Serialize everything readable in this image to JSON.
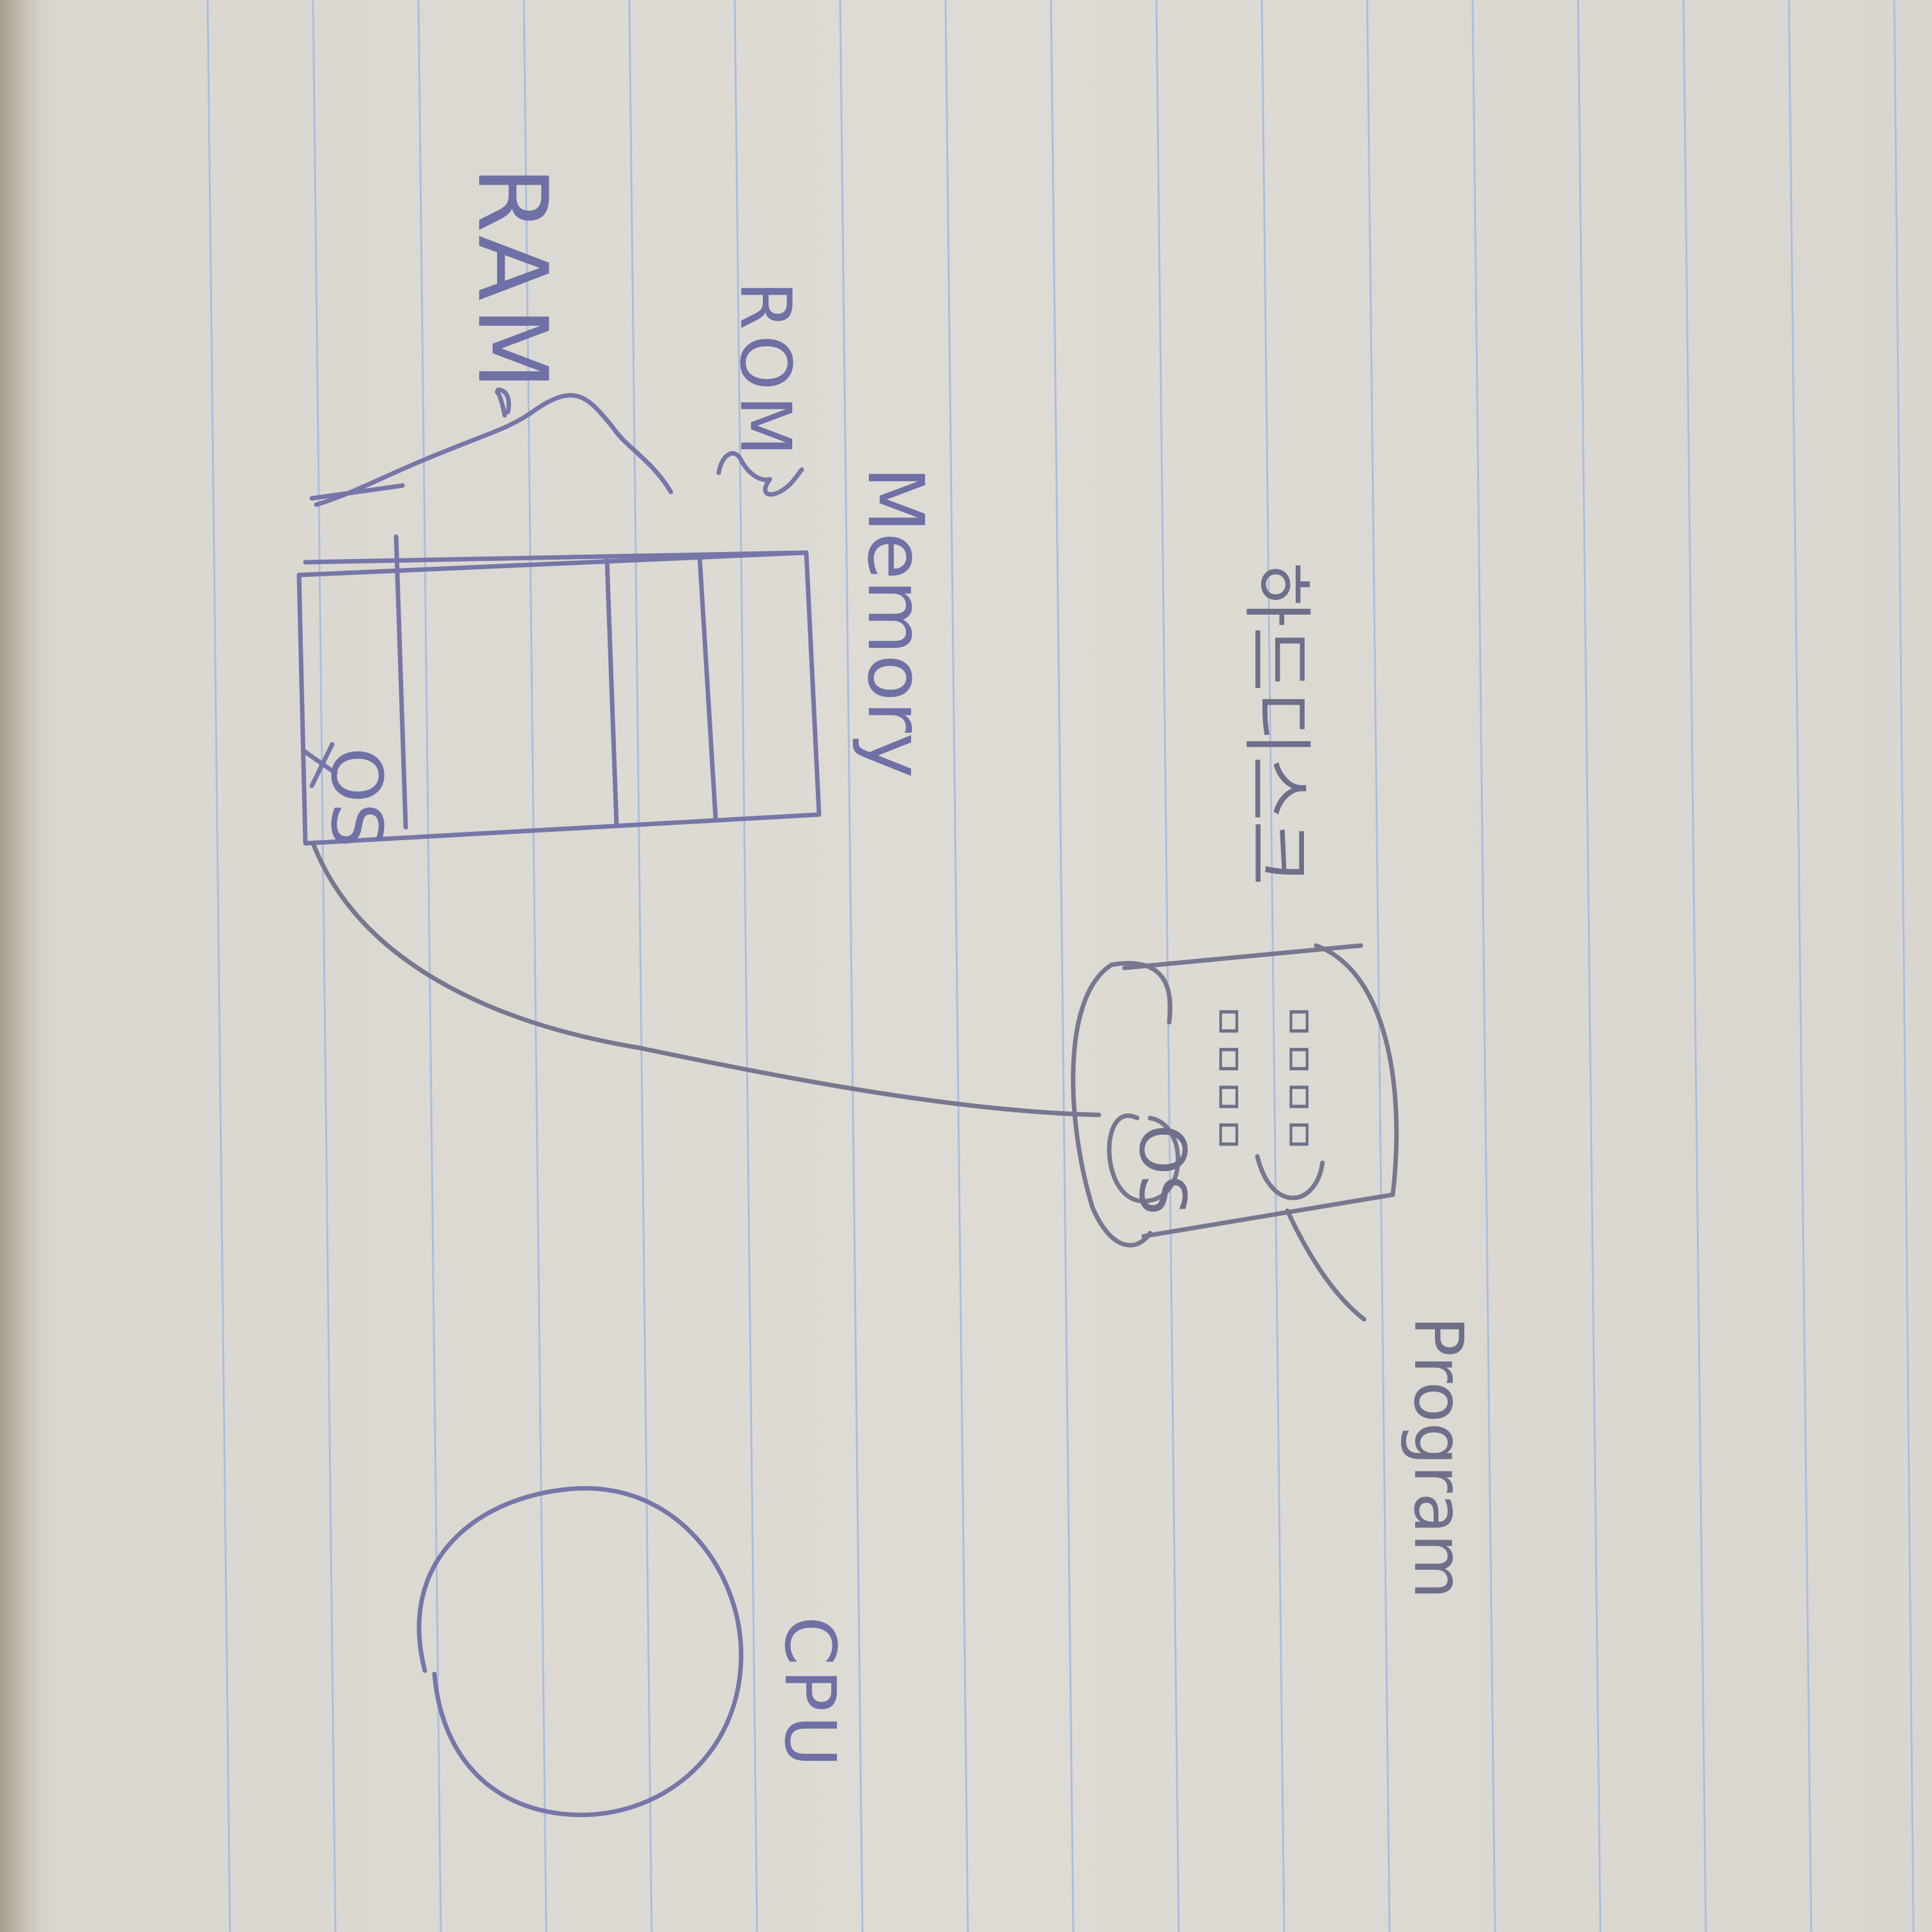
{
  "labels": {
    "ram": "RAM",
    "rom": "ROM",
    "memory": "Memory",
    "os_in_memory": "OS",
    "os_on_disk": "OS",
    "disk_korean": "하드디스크",
    "program": "Program",
    "cpu": "CPU"
  },
  "disk_contents": [
    "ㅁㅁㅁㅁ",
    "ㅁㅁㅁㅁ"
  ],
  "colors": {
    "ink_blue": "#7677a8",
    "ink_gray": "#77788f",
    "paper": "#dedbd4",
    "rule_line": "#a9bfe0"
  }
}
